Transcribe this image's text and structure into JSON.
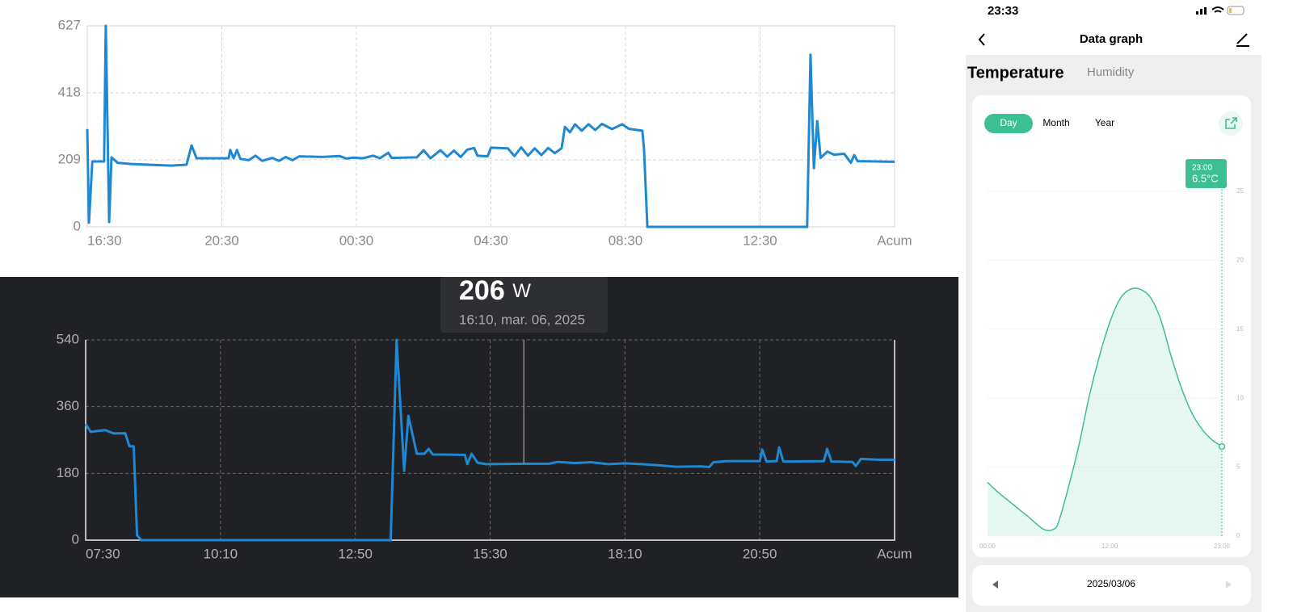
{
  "chart_data": [
    {
      "type": "line",
      "color": "#1f88d2",
      "x": [
        0,
        0.05,
        0.15,
        0.5,
        0.55,
        0.65,
        0.72,
        0.9,
        1.3,
        1.8,
        2.5,
        2.95,
        3.1,
        3.25,
        4.2,
        4.25,
        4.35,
        4.45,
        4.55,
        4.8,
        5.0,
        5.2,
        5.5,
        5.7,
        5.9,
        6.1,
        6.3,
        7.0,
        7.5,
        7.7,
        7.9,
        8.2,
        8.5,
        8.7,
        8.95,
        9.05,
        9.8,
        10.0,
        10.2,
        10.5,
        10.7,
        10.9,
        11.1,
        11.3,
        11.5,
        11.6,
        11.9,
        12.0,
        12.5,
        12.7,
        12.9,
        13.1,
        13.3,
        13.5,
        13.7,
        13.9,
        14.1,
        14.2,
        14.35,
        14.5,
        14.7,
        14.9,
        15.1,
        15.3,
        15.6,
        15.9,
        16.1,
        16.5,
        16.55,
        16.65,
        21.4,
        21.5,
        21.6,
        21.7,
        21.8,
        22.0,
        22.2,
        22.5,
        22.7,
        22.8,
        22.9,
        24
      ],
      "values": [
        305,
        13,
        204,
        204,
        627,
        15,
        217,
        200,
        196,
        194,
        191,
        194,
        254,
        214,
        214,
        240,
        214,
        240,
        212,
        208,
        222,
        206,
        215,
        206,
        218,
        208,
        220,
        218,
        221,
        213,
        216,
        214,
        222,
        214,
        231,
        215,
        217,
        239,
        214,
        239,
        219,
        238,
        218,
        241,
        246,
        222,
        220,
        247,
        245,
        221,
        248,
        222,
        245,
        224,
        246,
        230,
        245,
        312,
        295,
        320,
        300,
        320,
        302,
        321,
        305,
        320,
        306,
        300,
        245,
        0,
        0,
        537,
        183,
        330,
        215,
        235,
        225,
        228,
        200,
        224,
        205,
        203
      ],
      "xlim": [
        0,
        24
      ],
      "xticks": [
        {
          "value": 0,
          "label": "16:30"
        },
        {
          "value": 4,
          "label": "20:30"
        },
        {
          "value": 8,
          "label": "00:30"
        },
        {
          "value": 12,
          "label": "04:30"
        },
        {
          "value": 16,
          "label": "08:30"
        },
        {
          "value": 20,
          "label": "12:30"
        },
        {
          "value": 24,
          "label": "Acum"
        }
      ],
      "ylim": [
        0,
        627
      ],
      "yticks": [
        0,
        209,
        418,
        627
      ],
      "grid": true
    },
    {
      "type": "line",
      "color": "#1f88d2",
      "x": [
        0,
        6,
        23,
        33,
        47,
        52,
        57,
        61,
        66,
        362,
        369,
        378,
        383,
        393,
        402,
        407,
        412,
        450,
        453,
        458,
        465,
        475,
        520,
        550,
        560,
        580,
        600,
        620,
        640,
        660,
        680,
        700,
        730,
        740,
        745,
        760,
        800,
        803,
        808,
        820,
        823,
        828,
        876,
        880,
        885,
        910,
        914,
        920,
        940,
        960
      ],
      "values": [
        313,
        292,
        297,
        288,
        288,
        253,
        253,
        13,
        0,
        0,
        540,
        187,
        335,
        233,
        233,
        246,
        231,
        230,
        205,
        233,
        209,
        205,
        206,
        206,
        211,
        208,
        210,
        205,
        207,
        205,
        202,
        198,
        199,
        197,
        210,
        213,
        213,
        244,
        212,
        213,
        250,
        212,
        213,
        246,
        212,
        211,
        200,
        219,
        217,
        217
      ],
      "xlim": [
        0,
        960
      ],
      "xticks": [
        {
          "value": 0,
          "label": "07:30"
        },
        {
          "value": 160,
          "label": "10:10"
        },
        {
          "value": 320,
          "label": "12:50"
        },
        {
          "value": 480,
          "label": "15:30"
        },
        {
          "value": 640,
          "label": "18:10"
        },
        {
          "value": 800,
          "label": "20:50"
        },
        {
          "value": 960,
          "label": "Acum"
        }
      ],
      "ylim": [
        0,
        540
      ],
      "yticks": [
        0,
        180,
        360,
        540
      ],
      "grid": true,
      "tooltip": {
        "x": 520,
        "value": 206,
        "unit": "W",
        "label": "16:10, mar. 06, 2025"
      }
    },
    {
      "type": "area",
      "color": "#3cbf95",
      "x": [
        0,
        1,
        2,
        3,
        4,
        5.5,
        6.5,
        7,
        8,
        9,
        10,
        11,
        12,
        13,
        14,
        15,
        16,
        17,
        18,
        19,
        20,
        21,
        22,
        23
      ],
      "values": [
        3.9,
        3.2,
        2.6,
        2.0,
        1.4,
        0.5,
        0.5,
        1.1,
        3.7,
        6.7,
        10.2,
        13.1,
        15.5,
        17.2,
        17.9,
        17.9,
        17.3,
        15.7,
        13.1,
        10.8,
        9.0,
        7.8,
        7.0,
        6.5
      ],
      "xlim": [
        0,
        23
      ],
      "xticks": [
        {
          "value": 0,
          "label": "00:00"
        },
        {
          "value": 12,
          "label": "12:00"
        },
        {
          "value": 23,
          "label": "23:00"
        }
      ],
      "ylim": [
        0,
        25
      ],
      "yticks": [
        0,
        5,
        10,
        15,
        20,
        25
      ],
      "grid": true,
      "tooltip": {
        "x": 23,
        "label": "23:00",
        "value": 6.5,
        "value_label": "6.5°C"
      }
    }
  ],
  "phone": {
    "time": "23:33",
    "title": "Data graph",
    "tabs": [
      "Temperature",
      "Humidity"
    ],
    "periods": [
      "Day",
      "Month",
      "Year"
    ],
    "date": "2025/03/06"
  }
}
